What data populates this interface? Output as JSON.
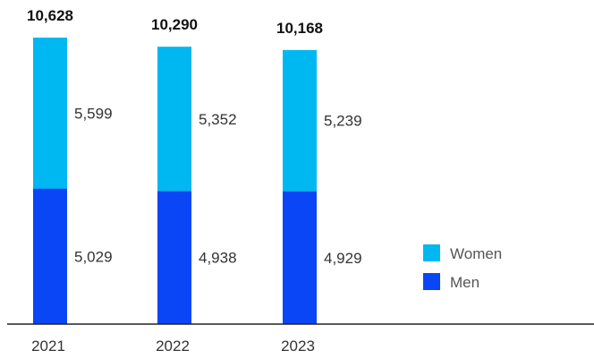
{
  "chart_data": {
    "type": "bar",
    "stacked": true,
    "title": "",
    "xlabel": "",
    "ylabel": "",
    "categories": [
      "2021",
      "2022",
      "2023"
    ],
    "series": [
      {
        "name": "Men",
        "values": [
          5029,
          4938,
          4929
        ],
        "labels": [
          "5,029",
          "4,938",
          "4,929"
        ]
      },
      {
        "name": "Women",
        "values": [
          5599,
          5352,
          5239
        ],
        "labels": [
          "5,599",
          "5,352",
          "5,239"
        ]
      }
    ],
    "totals": [
      10628,
      10290,
      10168
    ],
    "total_labels": [
      "10,628",
      "10,290",
      "10,168"
    ],
    "ylim": [
      0,
      10628
    ],
    "grid": false,
    "legend_position": "right",
    "colors": {
      "Men": "#0a46f5",
      "Women": "#00b8f1",
      "axis": "#222222"
    }
  }
}
